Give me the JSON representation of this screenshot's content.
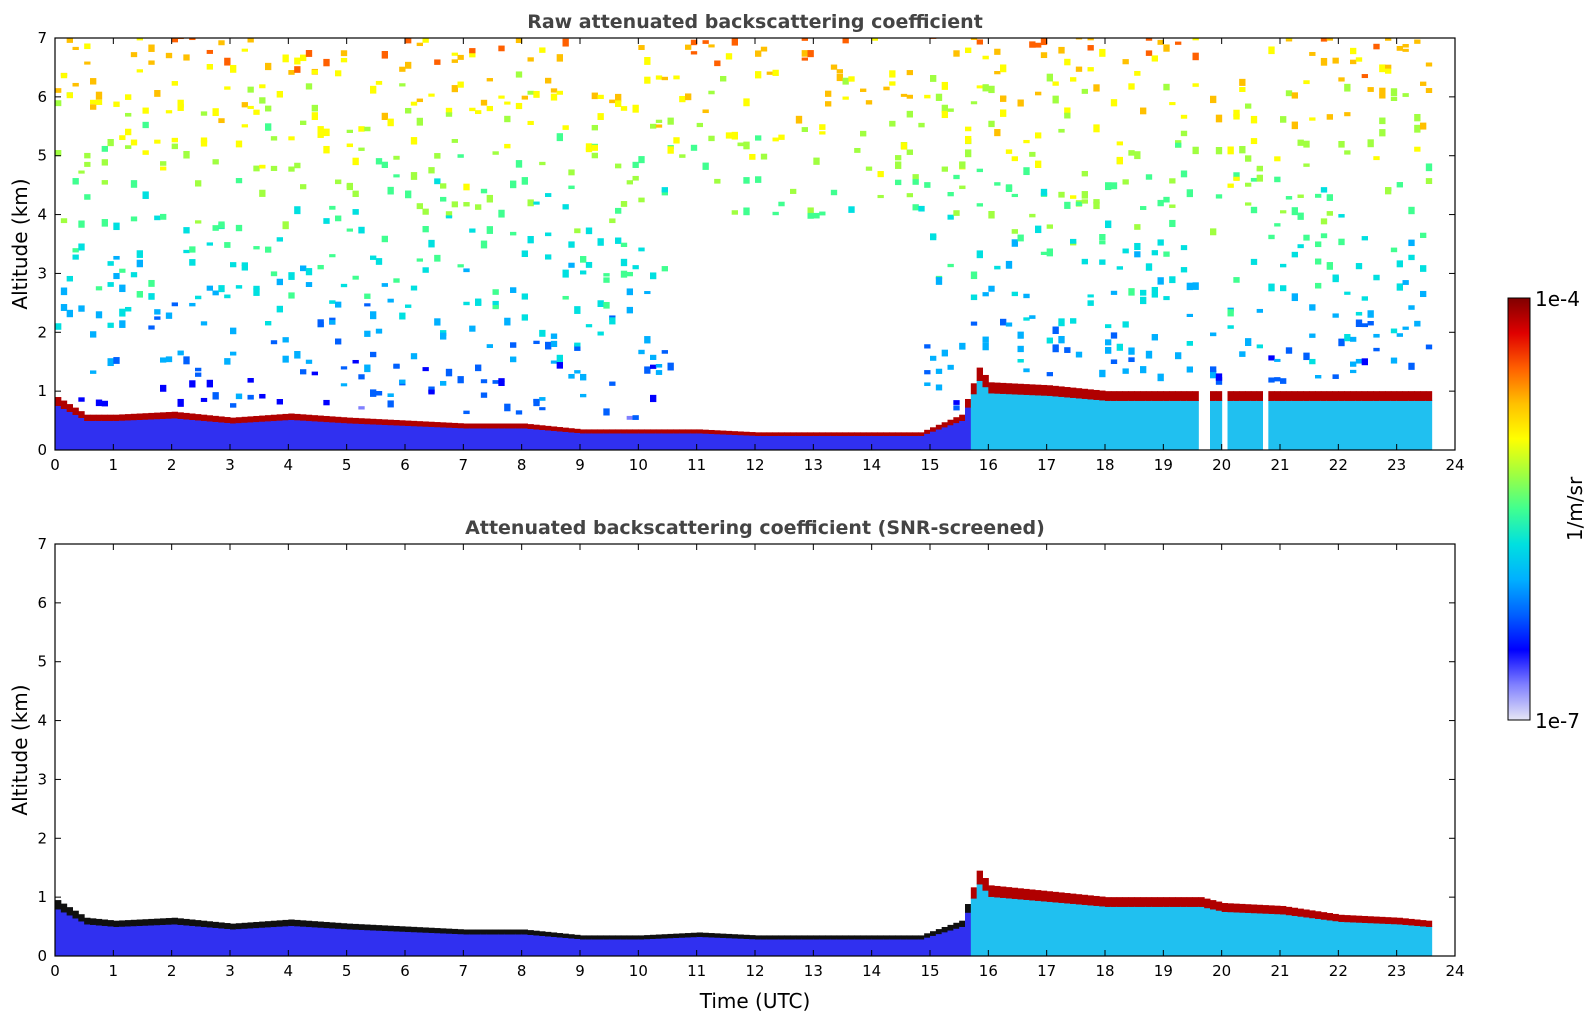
{
  "chart_data": [
    {
      "type": "heatmap",
      "title": "Raw attenuated backscattering coefficient",
      "xlabel": "",
      "ylabel": "Altitude (km)",
      "xlim": [
        0,
        24
      ],
      "ylim": [
        0,
        7
      ],
      "x_ticks": [
        0,
        1,
        2,
        3,
        4,
        5,
        6,
        7,
        8,
        9,
        10,
        11,
        12,
        13,
        14,
        15,
        16,
        17,
        18,
        19,
        20,
        21,
        22,
        23,
        24
      ],
      "y_ticks": [
        0,
        1,
        2,
        3,
        4,
        5,
        6,
        7
      ],
      "data_end_x": 23.55,
      "layer_top_km": {
        "x": [
          0,
          0.5,
          1,
          2,
          3,
          4,
          5,
          6,
          7,
          8,
          9,
          10,
          11,
          12,
          13,
          14,
          14.8,
          15.5,
          15.8,
          16,
          17,
          18,
          19,
          19.6
        ],
        "y": [
          0.9,
          0.6,
          0.6,
          0.65,
          0.55,
          0.62,
          0.55,
          0.5,
          0.45,
          0.45,
          0.35,
          0.35,
          0.35,
          0.3,
          0.3,
          0.3,
          0.3,
          0.6,
          1.4,
          1.15,
          1.1,
          1.0,
          1.0,
          1.0
        ]
      },
      "data_gaps_x": [
        [
          19.6,
          19.8
        ],
        [
          19.95,
          20.1
        ],
        [
          20.65,
          20.8
        ]
      ],
      "grid": false
    },
    {
      "type": "heatmap",
      "title": "Attenuated backscattering coefficient (SNR-screened)",
      "xlabel": "Time (UTC)",
      "ylabel": "Altitude (km)",
      "xlim": [
        0,
        24
      ],
      "ylim": [
        0,
        7
      ],
      "x_ticks": [
        0,
        1,
        2,
        3,
        4,
        5,
        6,
        7,
        8,
        9,
        10,
        11,
        12,
        13,
        14,
        15,
        16,
        17,
        18,
        19,
        20,
        21,
        22,
        23,
        24
      ],
      "y_ticks": [
        0,
        1,
        2,
        3,
        4,
        5,
        6,
        7
      ],
      "data_end_x": 23.55,
      "layer_top_km": {
        "x": [
          0,
          0.5,
          1,
          2,
          3,
          4,
          5,
          6,
          7,
          8,
          9,
          10,
          11,
          12,
          13,
          14,
          14.8,
          15.5,
          15.8,
          16,
          17,
          18,
          19,
          19.6,
          20,
          21,
          22,
          23,
          23.5
        ],
        "y": [
          0.95,
          0.65,
          0.6,
          0.65,
          0.55,
          0.62,
          0.55,
          0.5,
          0.45,
          0.45,
          0.35,
          0.35,
          0.4,
          0.35,
          0.35,
          0.35,
          0.35,
          0.6,
          1.45,
          1.2,
          1.1,
          1.0,
          1.0,
          1.0,
          0.9,
          0.85,
          0.7,
          0.65,
          0.6
        ]
      },
      "grid": false
    }
  ],
  "colorbar": {
    "min_label": "1e-7",
    "max_label": "1e-4",
    "label": "1/m/sr",
    "colors": [
      "#e6e6f5",
      "#8080ff",
      "#0000ff",
      "#0060ff",
      "#00b0ff",
      "#00e0e0",
      "#40ff90",
      "#a0ff40",
      "#ffff00",
      "#ffc000",
      "#ff6000",
      "#e00000",
      "#800000"
    ]
  }
}
